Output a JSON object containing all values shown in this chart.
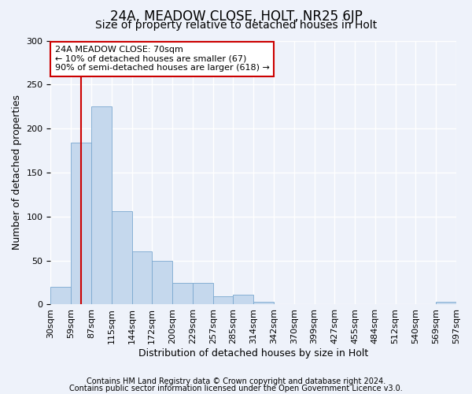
{
  "title": "24A, MEADOW CLOSE, HOLT, NR25 6JP",
  "subtitle": "Size of property relative to detached houses in Holt",
  "xlabel": "Distribution of detached houses by size in Holt",
  "ylabel": "Number of detached properties",
  "bar_values": [
    20,
    184,
    225,
    106,
    60,
    50,
    25,
    25,
    9,
    11,
    3,
    0,
    0,
    0,
    0,
    0,
    0,
    0,
    0,
    3
  ],
  "bar_labels": [
    "30sqm",
    "59sqm",
    "87sqm",
    "115sqm",
    "144sqm",
    "172sqm",
    "200sqm",
    "229sqm",
    "257sqm",
    "285sqm",
    "314sqm",
    "342sqm",
    "370sqm",
    "399sqm",
    "427sqm",
    "455sqm",
    "484sqm",
    "512sqm",
    "540sqm",
    "569sqm",
    "597sqm"
  ],
  "bar_color": "#c5d8ed",
  "bar_edgecolor": "#7aa8d0",
  "vline_color": "#cc0000",
  "vline_x": 1.0,
  "annotation_text": "24A MEADOW CLOSE: 70sqm\n← 10% of detached houses are smaller (67)\n90% of semi-detached houses are larger (618) →",
  "annotation_box_edgecolor": "#cc0000",
  "ylim": [
    0,
    300
  ],
  "yticks": [
    0,
    50,
    100,
    150,
    200,
    250,
    300
  ],
  "background_color": "#eef2fa",
  "grid_color": "#ffffff",
  "title_fontsize": 12,
  "subtitle_fontsize": 10,
  "axis_label_fontsize": 9,
  "tick_fontsize": 8,
  "annotation_fontsize": 8,
  "footer_fontsize": 7,
  "footer1": "Contains HM Land Registry data © Crown copyright and database right 2024.",
  "footer2": "Contains public sector information licensed under the Open Government Licence v3.0."
}
